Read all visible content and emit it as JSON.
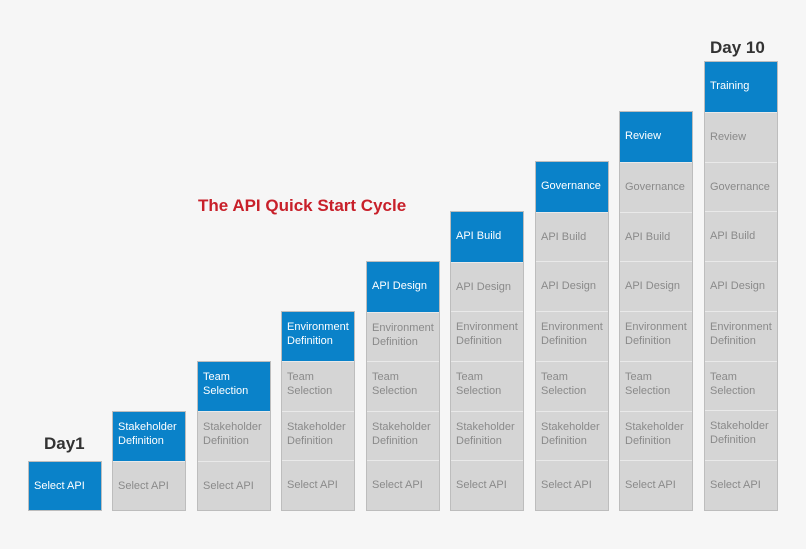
{
  "title": "The API Quick Start Cycle",
  "day_start_label": "Day1",
  "day_end_label": "Day 10",
  "colors": {
    "active_fill": "#0a82c9",
    "inactive_fill": "#d5d5d5",
    "inactive_text": "#8a8a8a",
    "title": "#c8202a"
  },
  "steps": [
    "Select API",
    "Stakeholder Definition",
    "Team Selection",
    "Environment Definition",
    "API Design",
    "API Build",
    "Governance",
    "Review",
    "Training"
  ]
}
